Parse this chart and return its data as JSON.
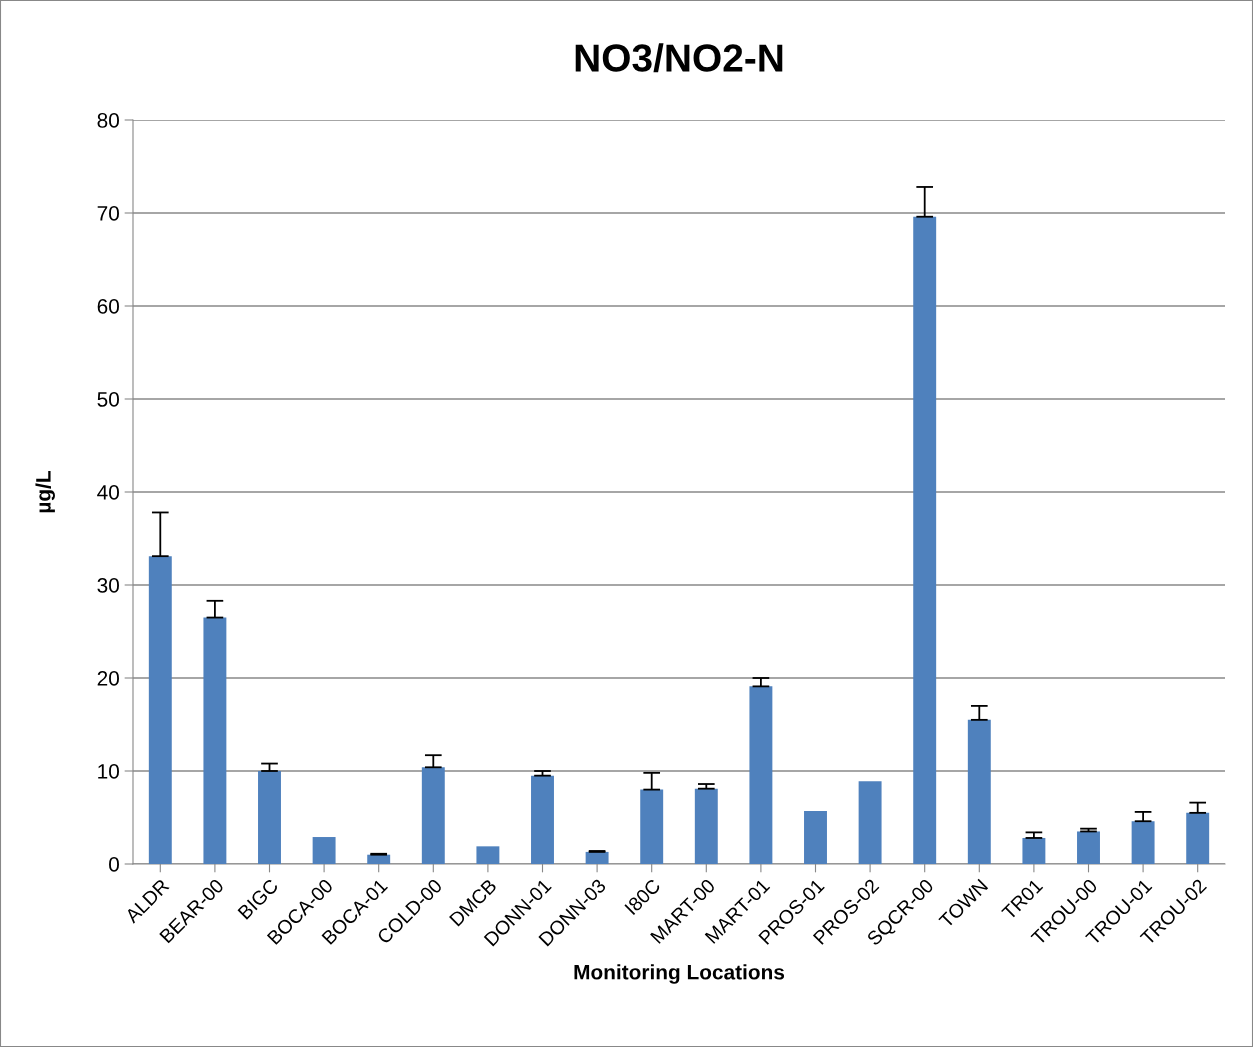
{
  "chart_data": {
    "type": "bar",
    "title": "NO3/NO2-N",
    "xlabel": "Monitoring Locations",
    "ylabel": "µg/L",
    "categories": [
      "ALDR",
      "BEAR-00",
      "BIGC",
      "BOCA-00",
      "BOCA-01",
      "COLD-00",
      "DMCB",
      "DONN-01",
      "DONN-03",
      "I80C",
      "MART-00",
      "MART-01",
      "PROS-01",
      "PROS-02",
      "SQCR-00",
      "TOWN",
      "TR01",
      "TROU-00",
      "TROU-01",
      "TROU-02"
    ],
    "values": [
      33.1,
      26.5,
      10.0,
      2.9,
      1.0,
      10.4,
      1.9,
      9.5,
      1.3,
      8.0,
      8.1,
      19.1,
      5.7,
      8.9,
      69.6,
      15.5,
      2.8,
      3.5,
      4.6,
      5.5
    ],
    "errors": [
      [
        33.1,
        37.8
      ],
      [
        26.5,
        28.3
      ],
      [
        10.0,
        10.8
      ],
      null,
      [
        1.0,
        1.1
      ],
      [
        10.4,
        11.7
      ],
      null,
      [
        9.5,
        10.0
      ],
      [
        1.3,
        1.4
      ],
      [
        8.0,
        9.8
      ],
      [
        8.1,
        8.6
      ],
      [
        19.1,
        20.0
      ],
      null,
      null,
      [
        69.6,
        72.8
      ],
      [
        15.5,
        17.0
      ],
      [
        2.8,
        3.4
      ],
      [
        3.5,
        3.8
      ],
      [
        4.6,
        5.6
      ],
      [
        5.5,
        6.6
      ]
    ],
    "color": "#4f81bd",
    "ylim": [
      0,
      80
    ],
    "yticks": [
      0,
      10,
      20,
      30,
      40,
      50,
      60,
      70,
      80
    ],
    "grid": "y"
  }
}
